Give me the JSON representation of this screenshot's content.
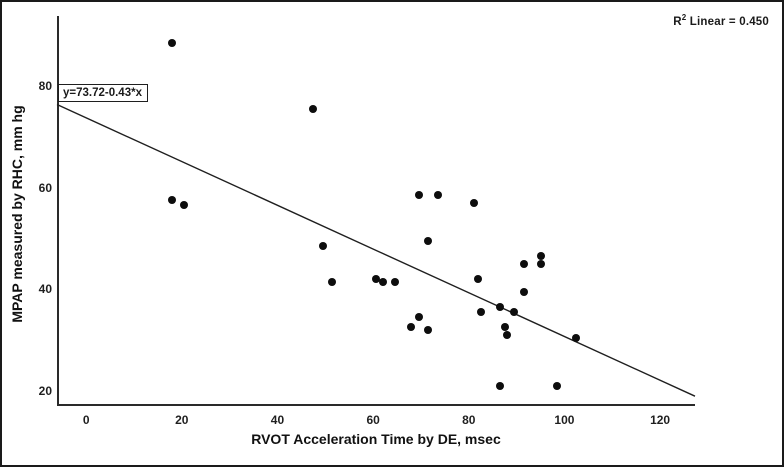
{
  "chart_data": {
    "type": "scatter",
    "title": "",
    "xlabel": "RVOT Acceleration Time by DE, msec",
    "ylabel": "MPAP measured by RHC, mm hg",
    "x_ticks": [
      0,
      20,
      40,
      60,
      80,
      100,
      120
    ],
    "y_ticks": [
      20,
      40,
      60,
      80
    ],
    "xlim": [
      -6.1,
      127.3
    ],
    "ylim": [
      17.25,
      93.75
    ],
    "grid": false,
    "points": [
      [
        18,
        88.5
      ],
      [
        18,
        57.5
      ],
      [
        20.5,
        56.5
      ],
      [
        47.5,
        75.5
      ],
      [
        49.5,
        48.5
      ],
      [
        51.5,
        41.5
      ],
      [
        60.5,
        42
      ],
      [
        62,
        41.5
      ],
      [
        64.5,
        41.5
      ],
      [
        69.5,
        58.5
      ],
      [
        73.5,
        58.5
      ],
      [
        81,
        57
      ],
      [
        71.5,
        49.5
      ],
      [
        69.5,
        34.5
      ],
      [
        68,
        32.5
      ],
      [
        71.5,
        32
      ],
      [
        82,
        42
      ],
      [
        82.5,
        35.5
      ],
      [
        86.5,
        36.5
      ],
      [
        89.5,
        35.5
      ],
      [
        87.5,
        32.5
      ],
      [
        88,
        31
      ],
      [
        91.5,
        45
      ],
      [
        95,
        46.5
      ],
      [
        95,
        45
      ],
      [
        91.5,
        39.5
      ],
      [
        102.5,
        30.5
      ],
      [
        86.5,
        21
      ],
      [
        98.5,
        21
      ]
    ],
    "regression": {
      "intercept": 73.72,
      "slope": -0.43,
      "label": "y=73.72-0.43*x"
    },
    "r_squared": {
      "base": "R",
      "sup": "2",
      "rest": " Linear = 0.450"
    },
    "colors": {
      "point": "#0d0d0d",
      "line": "#1f1f1f",
      "axis": "#2a2a2a"
    }
  }
}
